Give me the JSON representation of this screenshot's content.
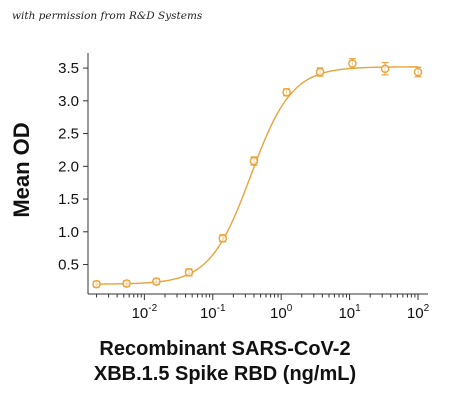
{
  "caption": "with permission from R&D Systems",
  "chart_data": {
    "type": "scatter",
    "xscale": "log",
    "xlim": [
      0.0015,
      140
    ],
    "ylim": [
      0.05,
      3.7
    ],
    "xticks": [
      0.01,
      0.1,
      1,
      10,
      100
    ],
    "xtick_labels": [
      {
        "base": "10",
        "exp": "-2"
      },
      {
        "base": "10",
        "exp": "-1"
      },
      {
        "base": "10",
        "exp": "0"
      },
      {
        "base": "10",
        "exp": "1"
      },
      {
        "base": "10",
        "exp": "2"
      }
    ],
    "yticks": [
      0.5,
      1.0,
      1.5,
      2.0,
      2.5,
      3.0,
      3.5
    ],
    "ytick_labels": [
      "0.5",
      "1.0",
      "1.5",
      "2.0",
      "2.5",
      "3.0",
      "3.5"
    ],
    "ylabel": "Mean OD",
    "xlabel_lines": [
      "Recombinant SARS-CoV-2",
      "XBB.1.5 Spike RBD (ng/mL)"
    ],
    "series": [
      {
        "color": "#E8A33A",
        "points": [
          {
            "x": 0.002,
            "y": 0.2,
            "err": 0.02
          },
          {
            "x": 0.0055,
            "y": 0.21,
            "err": 0.02
          },
          {
            "x": 0.015,
            "y": 0.24,
            "err": 0.02
          },
          {
            "x": 0.045,
            "y": 0.38,
            "err": 0.03
          },
          {
            "x": 0.14,
            "y": 0.9,
            "err": 0.03
          },
          {
            "x": 0.4,
            "y": 2.08,
            "err": 0.04
          },
          {
            "x": 1.2,
            "y": 3.13,
            "err": 0.03
          },
          {
            "x": 3.7,
            "y": 3.44,
            "err": 0.04
          },
          {
            "x": 11,
            "y": 3.57,
            "err": 0.05
          },
          {
            "x": 33,
            "y": 3.49,
            "err": 0.07
          },
          {
            "x": 100,
            "y": 3.44,
            "err": 0.05
          }
        ],
        "fit": {
          "bottom": 0.2,
          "top": 3.52,
          "ec50": 0.36,
          "hill": 1.45
        }
      }
    ],
    "grid": false,
    "legend": "none"
  }
}
